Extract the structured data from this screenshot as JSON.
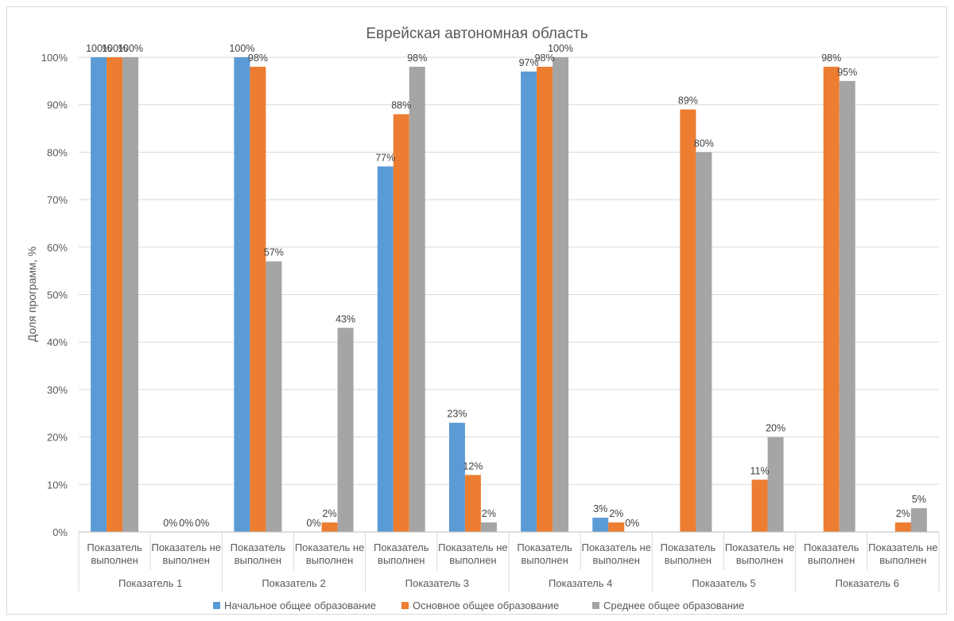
{
  "chart_data": {
    "type": "bar",
    "title": "Еврейская автономная область",
    "xlabel": "",
    "ylabel": "Доля программ, %",
    "ylim": [
      0,
      100
    ],
    "y_ticks": [
      "0%",
      "10%",
      "20%",
      "30%",
      "40%",
      "50%",
      "60%",
      "70%",
      "80%",
      "90%",
      "100%"
    ],
    "grid": true,
    "legend_position": "bottom",
    "groups": [
      "Показатель 1",
      "Показатель 2",
      "Показатель 3",
      "Показатель 4",
      "Показатель 5",
      "Показатель 6"
    ],
    "subcategories": [
      [
        "Показатель",
        "выполнен"
      ],
      [
        "Показатель не",
        "выполнен"
      ]
    ],
    "series": [
      {
        "name": "Начальное общее образование",
        "color": "#5b9bd5",
        "values": [
          100,
          0,
          100,
          0,
          77,
          23,
          97,
          3,
          null,
          null,
          null,
          null
        ],
        "labels": [
          "100%",
          "0%",
          "100%",
          "0%",
          "77%",
          "23%",
          "97%",
          "3%",
          "",
          "",
          "",
          ""
        ]
      },
      {
        "name": "Основное общее образование",
        "color": "#ed7d31",
        "values": [
          100,
          0,
          98,
          2,
          88,
          12,
          98,
          2,
          89,
          11,
          98,
          2
        ],
        "labels": [
          "100%",
          "0%",
          "98%",
          "2%",
          "88%",
          "12%",
          "98%",
          "2%",
          "89%",
          "11%",
          "98%",
          "2%"
        ]
      },
      {
        "name": "Среднее общее образование",
        "color": "#a5a5a5",
        "values": [
          100,
          0,
          57,
          43,
          98,
          2,
          100,
          0,
          80,
          20,
          95,
          5
        ],
        "labels": [
          "100%",
          "0%",
          "57%",
          "43%",
          "98%",
          "2%",
          "100%",
          "0%",
          "80%",
          "20%",
          "95%",
          "5%"
        ]
      }
    ]
  }
}
